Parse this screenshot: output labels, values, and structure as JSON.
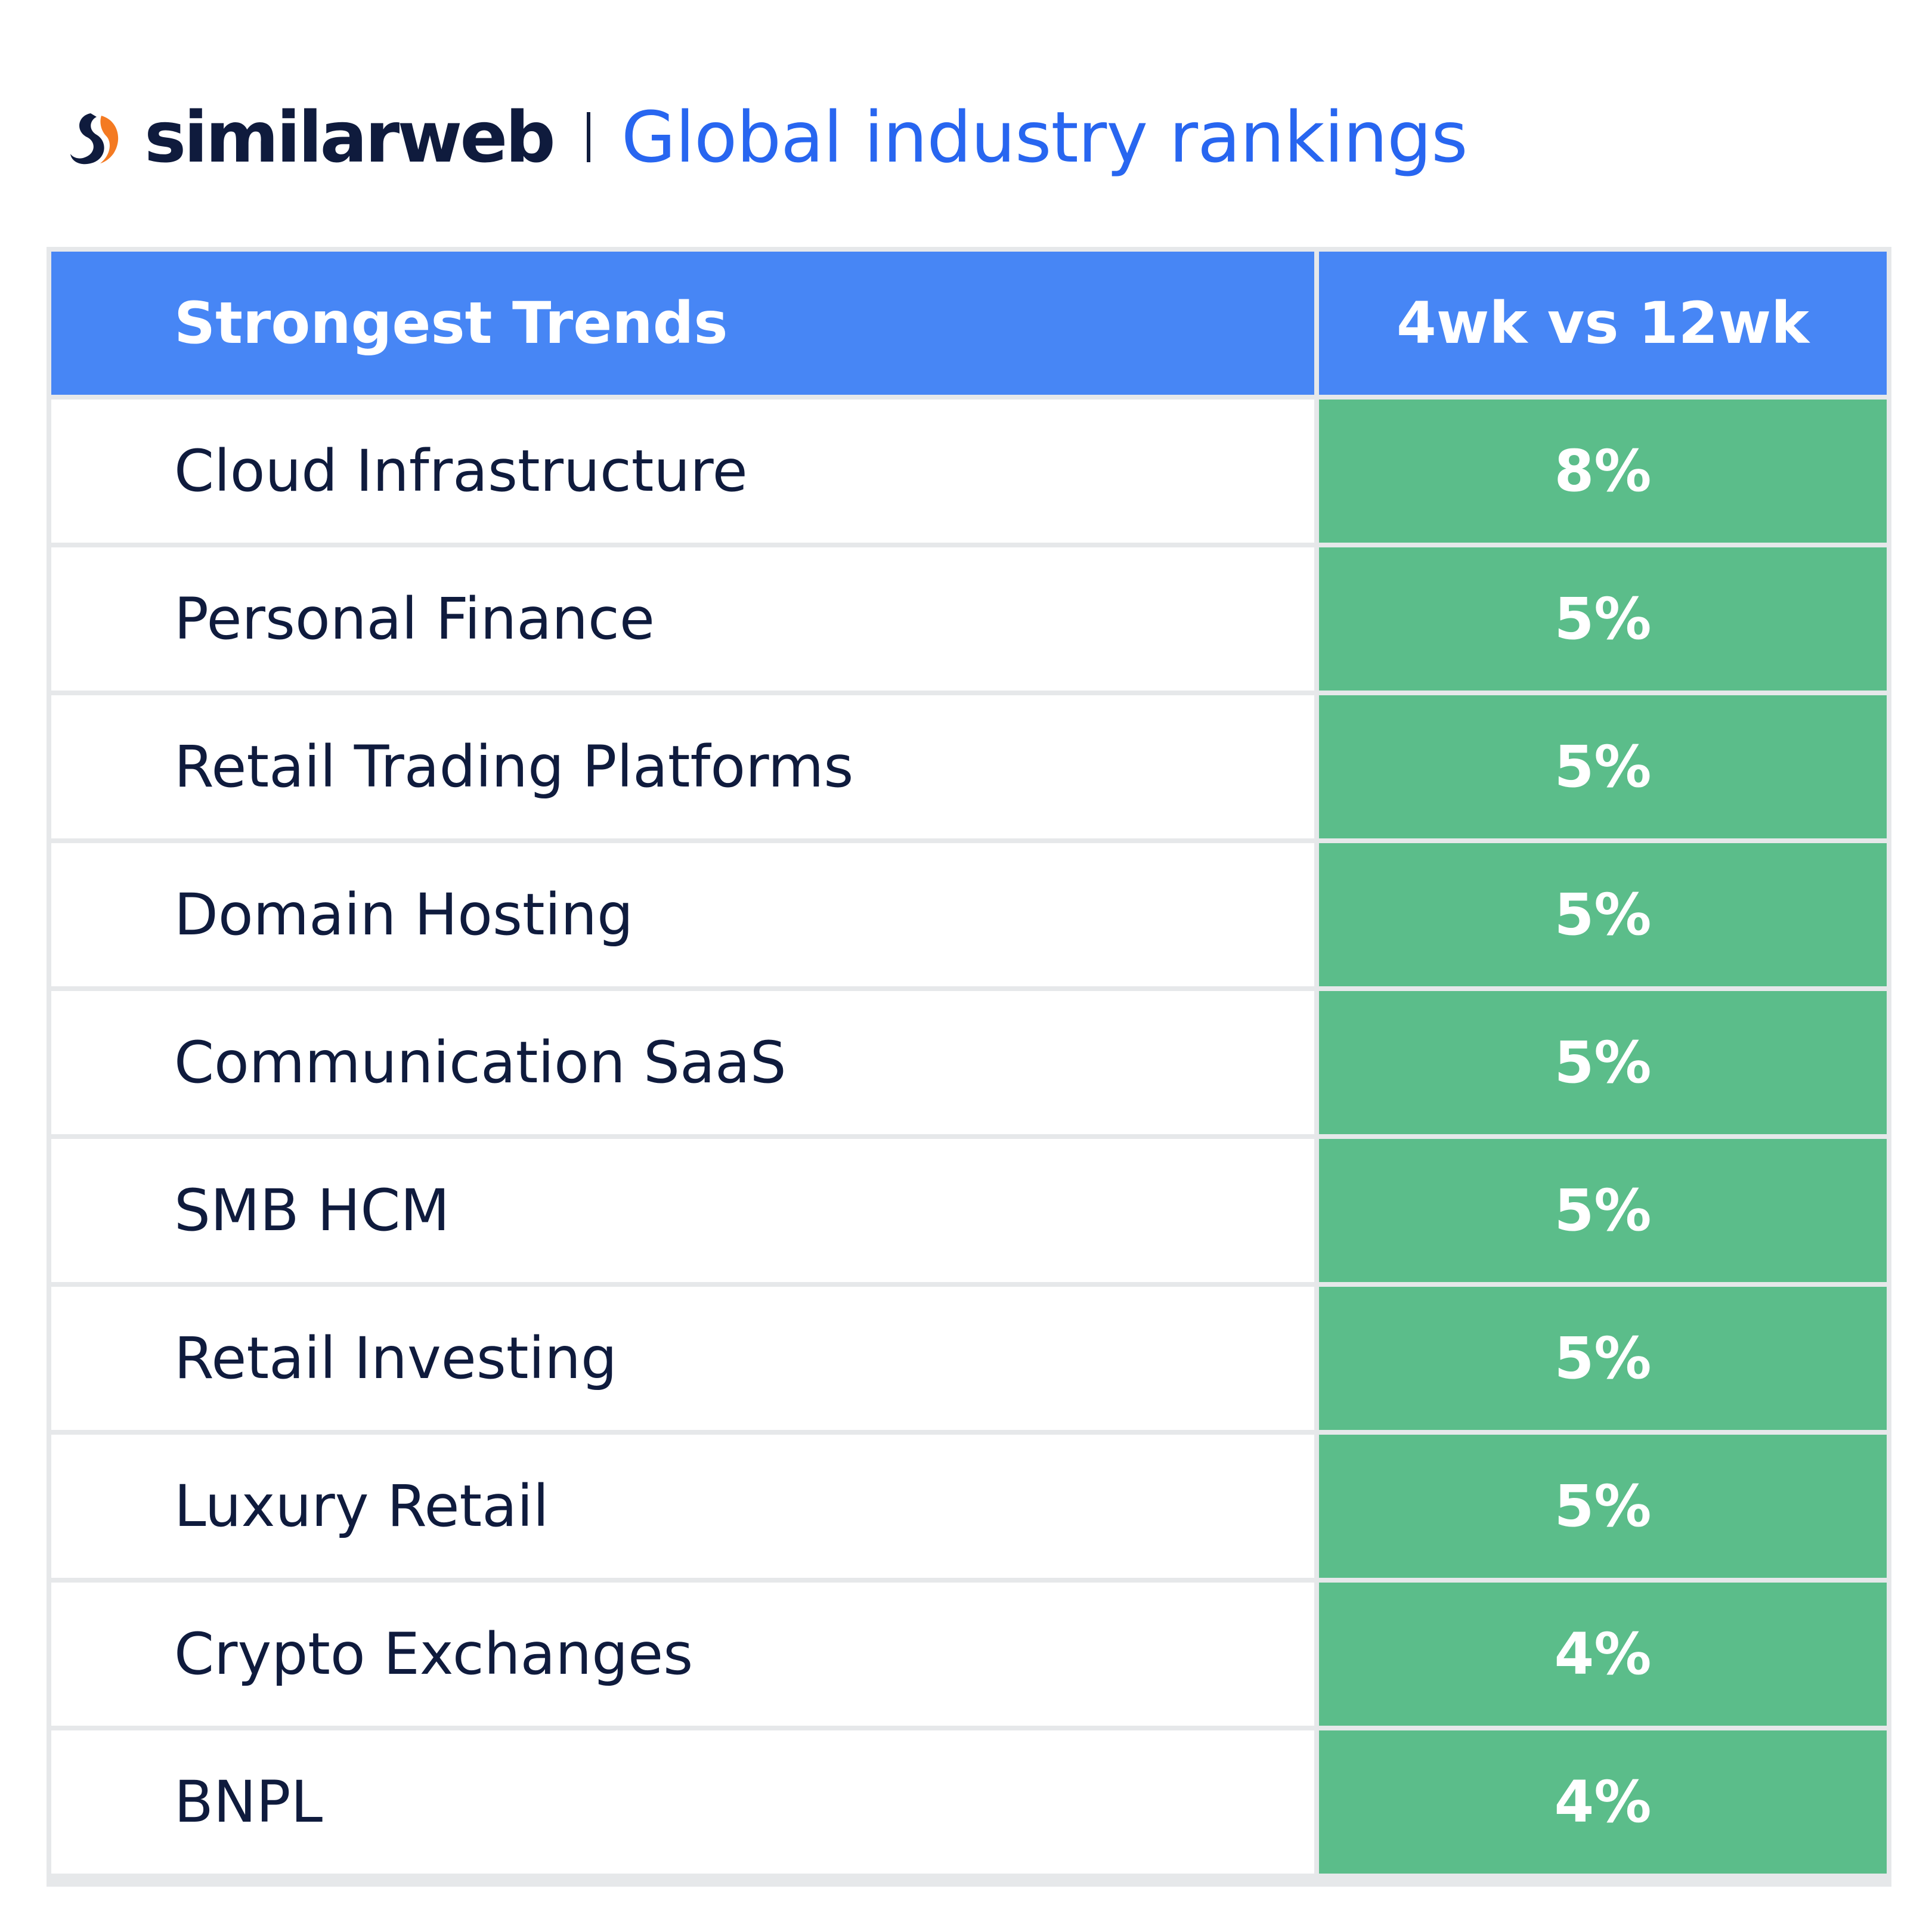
{
  "header": {
    "brand": "similarweb",
    "title": "Global industry rankings"
  },
  "colors": {
    "brand_dark": "#0f1b3d",
    "brand_orange": "#f47a22",
    "title_blue": "#2866f0",
    "header_blue": "#4786f5",
    "value_green": "#5bbd8a"
  },
  "icons": {
    "logo": "similarweb-logo-icon"
  },
  "chart_data": {
    "type": "table",
    "columns": [
      "Strongest Trends",
      "4wk vs 12wk"
    ],
    "rows": [
      {
        "label": "Cloud Infrastructure",
        "value": "8%"
      },
      {
        "label": "Personal Finance",
        "value": "5%"
      },
      {
        "label": "Retail Trading Platforms",
        "value": "5%"
      },
      {
        "label": "Domain Hosting",
        "value": "5%"
      },
      {
        "label": "Communication SaaS",
        "value": "5%"
      },
      {
        "label": "SMB HCM",
        "value": "5%"
      },
      {
        "label": "Retail Investing",
        "value": "5%"
      },
      {
        "label": "Luxury Retail",
        "value": "5%"
      },
      {
        "label": "Crypto Exchanges",
        "value": "4%"
      },
      {
        "label": "BNPL",
        "value": "4%"
      }
    ]
  }
}
